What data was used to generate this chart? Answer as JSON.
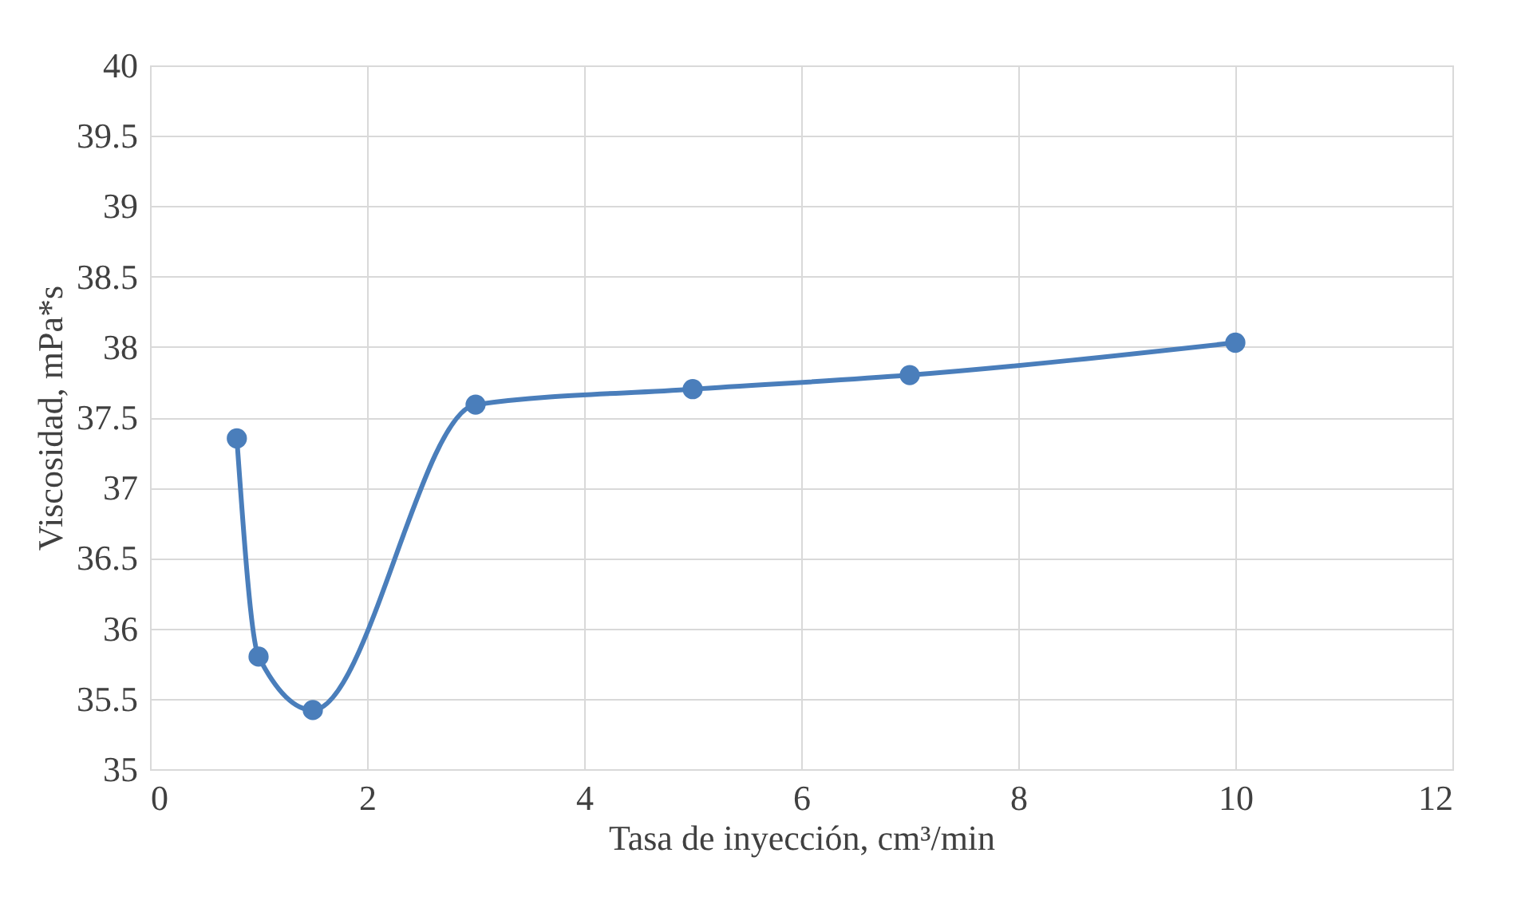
{
  "chart_data": {
    "type": "line",
    "xlabel": "Tasa de inyección, cm³/min",
    "ylabel": "Viscosidad, mPa*s",
    "x": [
      0.8,
      1,
      1.5,
      3,
      5,
      7,
      10
    ],
    "series": [
      {
        "color": "#4a7ebb",
        "values": [
          37.35,
          35.8,
          35.42,
          37.59,
          37.7,
          37.8,
          38.03
        ]
      }
    ],
    "xlim": [
      0,
      12
    ],
    "xticks": [
      0,
      2,
      4,
      6,
      8,
      10,
      12
    ],
    "ylim": [
      35,
      40
    ],
    "yticks": [
      35,
      35.5,
      36,
      36.5,
      37,
      37.5,
      38,
      38.5,
      39,
      39.5,
      40
    ],
    "grid": true,
    "marker": "circle",
    "line_style": "solid"
  }
}
